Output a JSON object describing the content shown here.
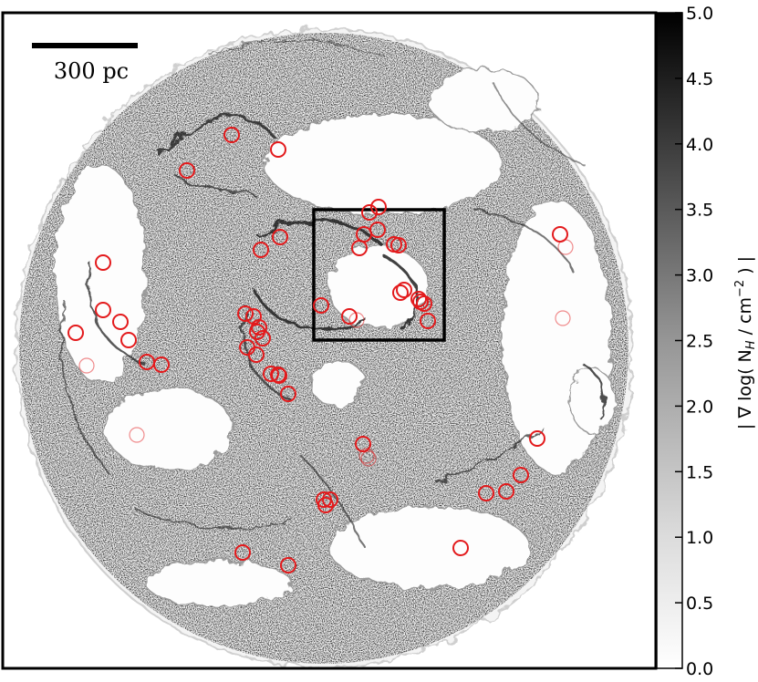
{
  "image": {
    "description_type": "column-density gradient map of a simulated disk galaxy",
    "scalebar": {
      "label": "300 pc"
    },
    "colorbar": {
      "label": "| ∇ log( N",
      "label_sub": "H",
      "label_unit": " / cm",
      "label_sup": "−2",
      "label_end": " ) |",
      "ticks": [
        "0.0",
        "0.5",
        "1.0",
        "1.5",
        "2.0",
        "2.5",
        "3.0",
        "3.5",
        "4.0",
        "4.5",
        "5.0"
      ],
      "colormap": "Greys"
    },
    "markers": {
      "color": "#e31a1c",
      "count": 66
    }
  }
}
